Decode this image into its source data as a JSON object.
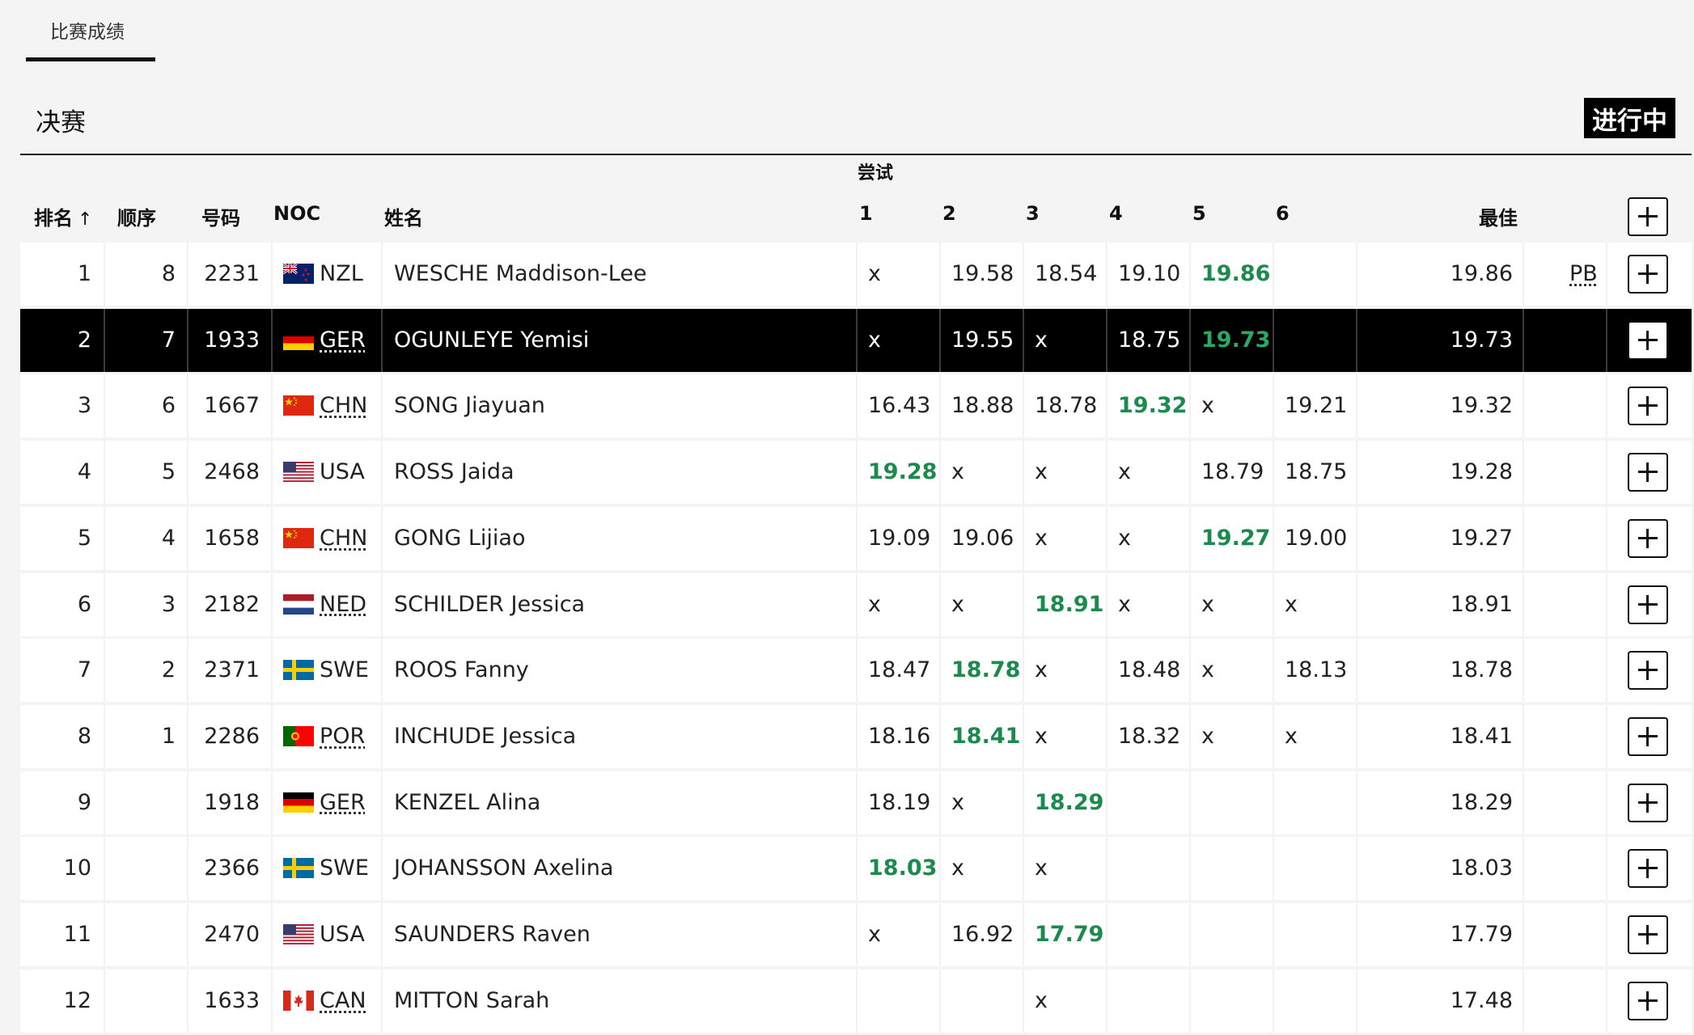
{
  "tabs": [
    {
      "label": "比赛成绩"
    }
  ],
  "section": {
    "title": "决赛",
    "status": "进行中"
  },
  "table": {
    "headers": {
      "rank": "排名",
      "order": "顺序",
      "bib": "号码",
      "noc": "NOC",
      "name": "姓名",
      "attempts_group": "尝试",
      "attempts": [
        "1",
        "2",
        "3",
        "4",
        "5",
        "6"
      ],
      "best": "最佳"
    },
    "sort_indicator": "↑",
    "rows": [
      {
        "rank": "1",
        "order": "8",
        "bib": "2231",
        "noc": "NZL",
        "name": "WESCHE Maddison-Lee",
        "attempts": [
          "x",
          "19.58",
          "18.54",
          "19.10",
          "19.86",
          ""
        ],
        "best_attempt_index": 4,
        "best": "19.86",
        "note": "PB"
      },
      {
        "rank": "2",
        "order": "7",
        "bib": "1933",
        "noc": "GER",
        "name": "OGUNLEYE Yemisi",
        "attempts": [
          "x",
          "19.55",
          "x",
          "18.75",
          "19.73",
          ""
        ],
        "best_attempt_index": 4,
        "best": "19.73",
        "note": "",
        "selected": true
      },
      {
        "rank": "3",
        "order": "6",
        "bib": "1667",
        "noc": "CHN",
        "name": "SONG Jiayuan",
        "attempts": [
          "16.43",
          "18.88",
          "18.78",
          "19.32",
          "x",
          "19.21"
        ],
        "best_attempt_index": 3,
        "best": "19.32",
        "note": ""
      },
      {
        "rank": "4",
        "order": "5",
        "bib": "2468",
        "noc": "USA",
        "name": "ROSS Jaida",
        "attempts": [
          "19.28",
          "x",
          "x",
          "x",
          "18.79",
          "18.75"
        ],
        "best_attempt_index": 0,
        "best": "19.28",
        "note": ""
      },
      {
        "rank": "5",
        "order": "4",
        "bib": "1658",
        "noc": "CHN",
        "name": "GONG Lijiao",
        "attempts": [
          "19.09",
          "19.06",
          "x",
          "x",
          "19.27",
          "19.00"
        ],
        "best_attempt_index": 4,
        "best": "19.27",
        "note": ""
      },
      {
        "rank": "6",
        "order": "3",
        "bib": "2182",
        "noc": "NED",
        "name": "SCHILDER Jessica",
        "attempts": [
          "x",
          "x",
          "18.91",
          "x",
          "x",
          "x"
        ],
        "best_attempt_index": 2,
        "best": "18.91",
        "note": ""
      },
      {
        "rank": "7",
        "order": "2",
        "bib": "2371",
        "noc": "SWE",
        "name": "ROOS Fanny",
        "attempts": [
          "18.47",
          "18.78",
          "x",
          "18.48",
          "x",
          "18.13"
        ],
        "best_attempt_index": 1,
        "best": "18.78",
        "note": ""
      },
      {
        "rank": "8",
        "order": "1",
        "bib": "2286",
        "noc": "POR",
        "name": "INCHUDE Jessica",
        "attempts": [
          "18.16",
          "18.41",
          "x",
          "18.32",
          "x",
          "x"
        ],
        "best_attempt_index": 1,
        "best": "18.41",
        "note": ""
      },
      {
        "rank": "9",
        "order": "",
        "bib": "1918",
        "noc": "GER",
        "name": "KENZEL Alina",
        "attempts": [
          "18.19",
          "x",
          "18.29",
          "",
          "",
          ""
        ],
        "best_attempt_index": 2,
        "best": "18.29",
        "note": ""
      },
      {
        "rank": "10",
        "order": "",
        "bib": "2366",
        "noc": "SWE",
        "name": "JOHANSSON Axelina",
        "attempts": [
          "18.03",
          "x",
          "x",
          "",
          "",
          ""
        ],
        "best_attempt_index": 0,
        "best": "18.03",
        "note": ""
      },
      {
        "rank": "11",
        "order": "",
        "bib": "2470",
        "noc": "USA",
        "name": "SAUNDERS Raven",
        "attempts": [
          "x",
          "16.92",
          "17.79",
          "",
          "",
          ""
        ],
        "best_attempt_index": 2,
        "best": "17.79",
        "note": ""
      },
      {
        "rank": "12",
        "order": "",
        "bib": "1633",
        "noc": "CAN",
        "name": "MITTON Sarah",
        "attempts": [
          "",
          "",
          "x",
          "",
          "",
          ""
        ],
        "best_attempt_index": -1,
        "best": "17.48",
        "note": ""
      }
    ]
  },
  "colors": {
    "best_attempt": "#1a8a4d",
    "selected_row": "#000000",
    "badge": "#000000"
  }
}
